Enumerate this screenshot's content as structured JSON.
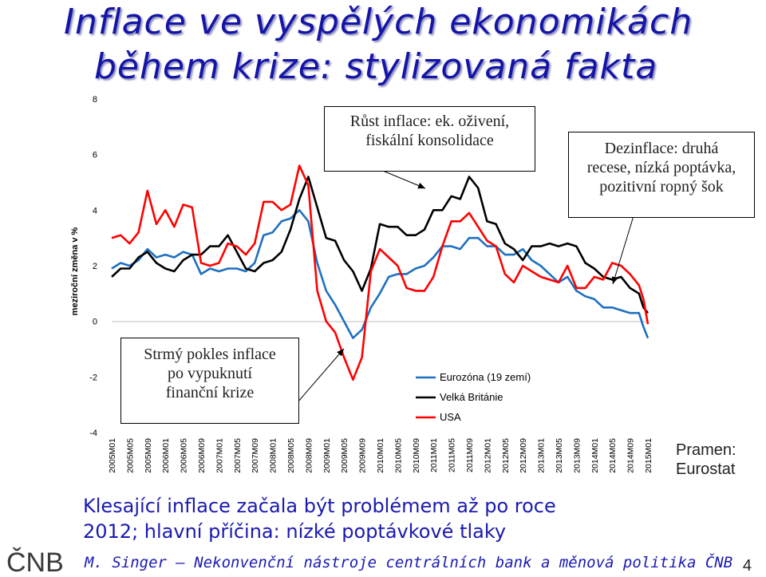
{
  "slide": {
    "title_line1": "Inflace ve vyspělých ekonomikách",
    "title_line2": "během krize: stylizovaná fakta",
    "conclusion_line1": "Klesající inflace začala být problémem až po roce",
    "conclusion_line2": "2012; hlavní příčina: nízké poptávkové tlaky",
    "footer": "M. Singer – Nekonvenční nástroje centrálních bank a měnová politika ČNB",
    "page_number": "4",
    "source_line1": "Pramen:",
    "source_line2": "Eurostat",
    "logo_text": "ČNB"
  },
  "annotations": {
    "growth": [
      "Růst inflace: ek. oživení,",
      "fiskální konsolidace"
    ],
    "disinflation": [
      "Dezinflace: druhá",
      "recese, nízká poptávka,",
      "pozitivní ropný šok"
    ],
    "drop": [
      "Strmý pokles inflace",
      "po vypuknutí",
      "finanční krize"
    ]
  },
  "chart_data": {
    "type": "line",
    "ylabel": "meziroční změna v %",
    "ylim": [
      -4,
      8
    ],
    "yticks": [
      -4,
      -2,
      0,
      2,
      4,
      6,
      8
    ],
    "x_start": "2005M01",
    "x_end": "2015M01",
    "xtick_labels": [
      "2005M01",
      "2005M05",
      "2005M09",
      "2006M01",
      "2006M05",
      "2006M09",
      "2007M01",
      "2007M05",
      "2007M09",
      "2008M01",
      "2008M05",
      "2008M09",
      "2009M01",
      "2009M05",
      "2009M09",
      "2010M01",
      "2010M05",
      "2010M09",
      "2011M01",
      "2011M05",
      "2011M09",
      "2012M01",
      "2012M05",
      "2012M09",
      "2013M01",
      "2013M05",
      "2013M09",
      "2014M01",
      "2014M05",
      "2014M09",
      "2015M01"
    ],
    "legend": "inside, lower-right of plot",
    "series": [
      {
        "name": "Eurozóna (19 zemí)",
        "color": "#1f70c1",
        "points": [
          [
            "2005M01",
            1.9
          ],
          [
            "2005M03",
            2.1
          ],
          [
            "2005M05",
            2.0
          ],
          [
            "2005M07",
            2.2
          ],
          [
            "2005M09",
            2.6
          ],
          [
            "2005M11",
            2.3
          ],
          [
            "2006M01",
            2.4
          ],
          [
            "2006M03",
            2.3
          ],
          [
            "2006M05",
            2.5
          ],
          [
            "2006M07",
            2.4
          ],
          [
            "2006M09",
            1.7
          ],
          [
            "2006M11",
            1.9
          ],
          [
            "2007M01",
            1.8
          ],
          [
            "2007M03",
            1.9
          ],
          [
            "2007M05",
            1.9
          ],
          [
            "2007M07",
            1.8
          ],
          [
            "2007M09",
            2.1
          ],
          [
            "2007M11",
            3.1
          ],
          [
            "2008M01",
            3.2
          ],
          [
            "2008M03",
            3.6
          ],
          [
            "2008M05",
            3.7
          ],
          [
            "2008M07",
            4.0
          ],
          [
            "2008M09",
            3.6
          ],
          [
            "2008M11",
            2.1
          ],
          [
            "2009M01",
            1.1
          ],
          [
            "2009M03",
            0.6
          ],
          [
            "2009M05",
            0.0
          ],
          [
            "2009M07",
            -0.6
          ],
          [
            "2009M09",
            -0.3
          ],
          [
            "2009M11",
            0.5
          ],
          [
            "2010M01",
            1.0
          ],
          [
            "2010M03",
            1.6
          ],
          [
            "2010M05",
            1.7
          ],
          [
            "2010M07",
            1.7
          ],
          [
            "2010M09",
            1.9
          ],
          [
            "2010M11",
            2.0
          ],
          [
            "2011M01",
            2.3
          ],
          [
            "2011M03",
            2.7
          ],
          [
            "2011M05",
            2.7
          ],
          [
            "2011M07",
            2.6
          ],
          [
            "2011M09",
            3.0
          ],
          [
            "2011M11",
            3.0
          ],
          [
            "2012M01",
            2.7
          ],
          [
            "2012M03",
            2.7
          ],
          [
            "2012M05",
            2.4
          ],
          [
            "2012M07",
            2.4
          ],
          [
            "2012M09",
            2.6
          ],
          [
            "2012M11",
            2.2
          ],
          [
            "2013M01",
            2.0
          ],
          [
            "2013M03",
            1.7
          ],
          [
            "2013M05",
            1.4
          ],
          [
            "2013M07",
            1.6
          ],
          [
            "2013M09",
            1.1
          ],
          [
            "2013M11",
            0.9
          ],
          [
            "2014M01",
            0.8
          ],
          [
            "2014M03",
            0.5
          ],
          [
            "2014M05",
            0.5
          ],
          [
            "2014M07",
            0.4
          ],
          [
            "2014M09",
            0.3
          ],
          [
            "2014M11",
            0.3
          ],
          [
            "2014M12",
            -0.2
          ],
          [
            "2015M01",
            -0.6
          ]
        ]
      },
      {
        "name": "Velká Británie",
        "color": "#000000",
        "points": [
          [
            "2005M01",
            1.6
          ],
          [
            "2005M03",
            1.9
          ],
          [
            "2005M05",
            1.9
          ],
          [
            "2005M07",
            2.3
          ],
          [
            "2005M09",
            2.5
          ],
          [
            "2005M11",
            2.1
          ],
          [
            "2006M01",
            1.9
          ],
          [
            "2006M03",
            1.8
          ],
          [
            "2006M05",
            2.2
          ],
          [
            "2006M07",
            2.4
          ],
          [
            "2006M09",
            2.4
          ],
          [
            "2006M11",
            2.7
          ],
          [
            "2007M01",
            2.7
          ],
          [
            "2007M03",
            3.1
          ],
          [
            "2007M05",
            2.5
          ],
          [
            "2007M07",
            1.9
          ],
          [
            "2007M09",
            1.8
          ],
          [
            "2007M11",
            2.1
          ],
          [
            "2008M01",
            2.2
          ],
          [
            "2008M03",
            2.5
          ],
          [
            "2008M05",
            3.3
          ],
          [
            "2008M07",
            4.4
          ],
          [
            "2008M09",
            5.2
          ],
          [
            "2008M11",
            4.1
          ],
          [
            "2009M01",
            3.0
          ],
          [
            "2009M03",
            2.9
          ],
          [
            "2009M05",
            2.2
          ],
          [
            "2009M07",
            1.8
          ],
          [
            "2009M09",
            1.1
          ],
          [
            "2009M11",
            1.9
          ],
          [
            "2010M01",
            3.5
          ],
          [
            "2010M03",
            3.4
          ],
          [
            "2010M05",
            3.4
          ],
          [
            "2010M07",
            3.1
          ],
          [
            "2010M09",
            3.1
          ],
          [
            "2010M11",
            3.3
          ],
          [
            "2011M01",
            4.0
          ],
          [
            "2011M03",
            4.0
          ],
          [
            "2011M05",
            4.5
          ],
          [
            "2011M07",
            4.4
          ],
          [
            "2011M09",
            5.2
          ],
          [
            "2011M11",
            4.8
          ],
          [
            "2012M01",
            3.6
          ],
          [
            "2012M03",
            3.5
          ],
          [
            "2012M05",
            2.8
          ],
          [
            "2012M07",
            2.6
          ],
          [
            "2012M09",
            2.2
          ],
          [
            "2012M11",
            2.7
          ],
          [
            "2013M01",
            2.7
          ],
          [
            "2013M03",
            2.8
          ],
          [
            "2013M05",
            2.7
          ],
          [
            "2013M07",
            2.8
          ],
          [
            "2013M09",
            2.7
          ],
          [
            "2013M11",
            2.1
          ],
          [
            "2014M01",
            1.9
          ],
          [
            "2014M03",
            1.6
          ],
          [
            "2014M05",
            1.5
          ],
          [
            "2014M07",
            1.6
          ],
          [
            "2014M09",
            1.2
          ],
          [
            "2014M11",
            1.0
          ],
          [
            "2014M12",
            0.5
          ],
          [
            "2015M01",
            0.3
          ]
        ]
      },
      {
        "name": "USA",
        "color": "#ff0000",
        "points": [
          [
            "2005M01",
            3.0
          ],
          [
            "2005M03",
            3.1
          ],
          [
            "2005M05",
            2.8
          ],
          [
            "2005M07",
            3.2
          ],
          [
            "2005M09",
            4.7
          ],
          [
            "2005M11",
            3.5
          ],
          [
            "2006M01",
            4.0
          ],
          [
            "2006M03",
            3.4
          ],
          [
            "2006M05",
            4.2
          ],
          [
            "2006M07",
            4.1
          ],
          [
            "2006M09",
            2.1
          ],
          [
            "2006M11",
            2.0
          ],
          [
            "2007M01",
            2.1
          ],
          [
            "2007M03",
            2.8
          ],
          [
            "2007M05",
            2.7
          ],
          [
            "2007M07",
            2.4
          ],
          [
            "2007M09",
            2.8
          ],
          [
            "2007M11",
            4.3
          ],
          [
            "2008M01",
            4.3
          ],
          [
            "2008M03",
            4.0
          ],
          [
            "2008M05",
            4.2
          ],
          [
            "2008M07",
            5.6
          ],
          [
            "2008M09",
            4.9
          ],
          [
            "2008M11",
            1.1
          ],
          [
            "2009M01",
            0.0
          ],
          [
            "2009M03",
            -0.4
          ],
          [
            "2009M05",
            -1.3
          ],
          [
            "2009M07",
            -2.1
          ],
          [
            "2009M09",
            -1.3
          ],
          [
            "2009M11",
            1.8
          ],
          [
            "2010M01",
            2.6
          ],
          [
            "2010M03",
            2.3
          ],
          [
            "2010M05",
            2.0
          ],
          [
            "2010M07",
            1.2
          ],
          [
            "2010M09",
            1.1
          ],
          [
            "2010M11",
            1.1
          ],
          [
            "2011M01",
            1.6
          ],
          [
            "2011M03",
            2.7
          ],
          [
            "2011M05",
            3.6
          ],
          [
            "2011M07",
            3.6
          ],
          [
            "2011M09",
            3.9
          ],
          [
            "2011M11",
            3.4
          ],
          [
            "2012M01",
            2.9
          ],
          [
            "2012M03",
            2.7
          ],
          [
            "2012M05",
            1.7
          ],
          [
            "2012M07",
            1.4
          ],
          [
            "2012M09",
            2.0
          ],
          [
            "2012M11",
            1.8
          ],
          [
            "2013M01",
            1.6
          ],
          [
            "2013M03",
            1.5
          ],
          [
            "2013M05",
            1.4
          ],
          [
            "2013M07",
            2.0
          ],
          [
            "2013M09",
            1.2
          ],
          [
            "2013M11",
            1.2
          ],
          [
            "2014M01",
            1.6
          ],
          [
            "2014M03",
            1.5
          ],
          [
            "2014M05",
            2.1
          ],
          [
            "2014M07",
            2.0
          ],
          [
            "2014M09",
            1.7
          ],
          [
            "2014M11",
            1.3
          ],
          [
            "2014M12",
            0.8
          ],
          [
            "2015M01",
            -0.1
          ]
        ]
      }
    ]
  }
}
